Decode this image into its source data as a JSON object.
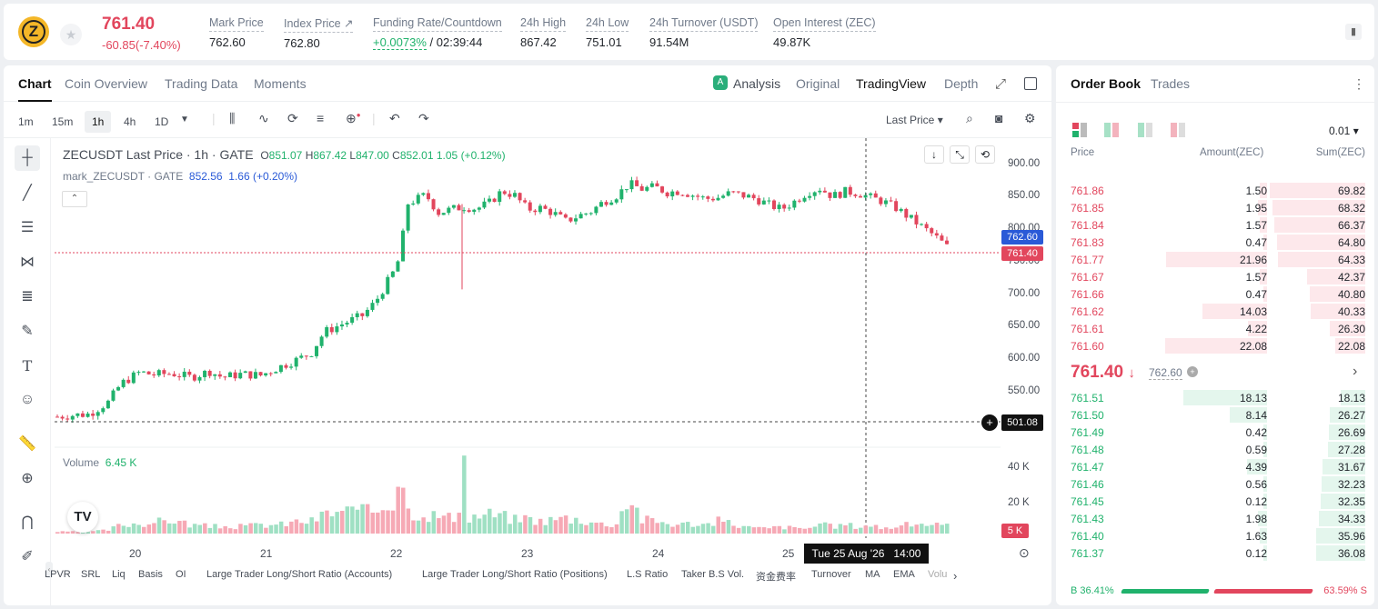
{
  "header": {
    "coin_icon": "zec-coin-icon",
    "last_price": "761.40",
    "change": "-60.85(-7.40%)",
    "stats": [
      {
        "label": "Mark Price",
        "value": "762.60"
      },
      {
        "label": "Index Price ↗",
        "value": "762.80"
      },
      {
        "label": "Funding Rate/Countdown",
        "value_green": "+0.0073%",
        "value": " / 02:39:44"
      },
      {
        "label": "24h High",
        "value": "867.42"
      },
      {
        "label": "24h Low",
        "value": "751.01"
      },
      {
        "label": "24h Turnover (USDT)",
        "value": "91.54M"
      },
      {
        "label": "Open Interest (ZEC)",
        "value": "49.87K"
      }
    ]
  },
  "chart_tabs": [
    "Chart",
    "Coin Overview",
    "Trading Data",
    "Moments"
  ],
  "view_tabs": [
    "Analysis",
    "Original",
    "TradingView",
    "Depth"
  ],
  "timeframes": [
    "1m",
    "15m",
    "1h",
    "4h",
    "1D"
  ],
  "price_type": "Last Price",
  "legend": {
    "title": "ZECUSDT Last Price · 1h · GATE",
    "o": "O",
    "o_v": "851.07",
    "h": "H",
    "h_v": "867.42",
    "l": "L",
    "l_v": "847.00",
    "c": "C",
    "c_v": "852.01",
    "chg": "1.05 (+0.12%)",
    "mark": "mark_ZECUSDT · GATE",
    "mark_v": "852.56",
    "mark_chg": "1.66 (+0.20%)"
  },
  "volume_label": "Volume",
  "volume_value": "6.45 K",
  "tags": {
    "mark": "762.60",
    "last": "761.40",
    "cross": "501.08",
    "vol": "5 K",
    "time": "Tue 25 Aug '26   14:00"
  },
  "indicators": [
    "LPVR",
    "SRL",
    "Liq",
    "Basis",
    "OI",
    "Large Trader Long/Short Ratio (Accounts)",
    "Large Trader Long/Short Ratio (Positions)",
    "L.S Ratio",
    "Taker B.S Vol.",
    "资金费率",
    "Turnover",
    "MA",
    "EMA",
    "Volu"
  ],
  "chart_data": {
    "type": "candlestick",
    "title": "ZECUSDT Last Price · 1h · GATE",
    "y_ticks": [
      "900.00",
      "850.00",
      "800.00",
      "750.00",
      "700.00",
      "650.00",
      "600.00",
      "550.00"
    ],
    "vol_ticks": [
      "40 K",
      "20 K"
    ],
    "x_ticks": [
      "20",
      "21",
      "22",
      "23",
      "24",
      "25"
    ],
    "close_path": [
      [
        0,
        506
      ],
      [
        8,
        508
      ],
      [
        20,
        510
      ],
      [
        32,
        528
      ],
      [
        40,
        556
      ],
      [
        52,
        574
      ],
      [
        60,
        570
      ],
      [
        72,
        572
      ],
      [
        84,
        566
      ],
      [
        96,
        575
      ],
      [
        104,
        566
      ],
      [
        116,
        571
      ],
      [
        128,
        569
      ],
      [
        140,
        582
      ],
      [
        152,
        594
      ],
      [
        160,
        604
      ],
      [
        168,
        635
      ],
      [
        180,
        648
      ],
      [
        192,
        660
      ],
      [
        200,
        680
      ],
      [
        212,
        728
      ],
      [
        216,
        752
      ],
      [
        220,
        830
      ],
      [
        232,
        844
      ],
      [
        240,
        817
      ],
      [
        248,
        822
      ],
      [
        256,
        826
      ],
      [
        264,
        823
      ],
      [
        272,
        832
      ],
      [
        280,
        850
      ],
      [
        288,
        843
      ],
      [
        296,
        822
      ],
      [
        304,
        824
      ],
      [
        312,
        817
      ],
      [
        320,
        804
      ],
      [
        328,
        812
      ],
      [
        336,
        819
      ],
      [
        344,
        834
      ],
      [
        352,
        843
      ],
      [
        360,
        861
      ],
      [
        368,
        853
      ],
      [
        376,
        856
      ],
      [
        384,
        848
      ],
      [
        392,
        850
      ],
      [
        400,
        844
      ],
      [
        408,
        838
      ],
      [
        416,
        840
      ],
      [
        424,
        847
      ],
      [
        432,
        843
      ],
      [
        440,
        838
      ],
      [
        448,
        829
      ],
      [
        456,
        822
      ],
      [
        464,
        834
      ],
      [
        472,
        848
      ],
      [
        480,
        854
      ],
      [
        488,
        842
      ],
      [
        496,
        849
      ],
      [
        504,
        847
      ],
      [
        512,
        840
      ],
      [
        520,
        834
      ],
      [
        528,
        824
      ],
      [
        536,
        810
      ],
      [
        544,
        796
      ],
      [
        552,
        782
      ],
      [
        560,
        765
      ]
    ],
    "volumes": [
      [
        0,
        1
      ],
      [
        8,
        1
      ],
      [
        20,
        1
      ],
      [
        32,
        2
      ],
      [
        40,
        5
      ],
      [
        52,
        6
      ],
      [
        60,
        6
      ],
      [
        72,
        8
      ],
      [
        84,
        5
      ],
      [
        96,
        4
      ],
      [
        104,
        4
      ],
      [
        116,
        4
      ],
      [
        128,
        5
      ],
      [
        140,
        5
      ],
      [
        152,
        7
      ],
      [
        160,
        7
      ],
      [
        168,
        11
      ],
      [
        180,
        13
      ],
      [
        192,
        12
      ],
      [
        200,
        13
      ],
      [
        212,
        20
      ],
      [
        216,
        44
      ],
      [
        220,
        13
      ],
      [
        232,
        11
      ],
      [
        240,
        10
      ],
      [
        248,
        9
      ],
      [
        256,
        8
      ],
      [
        264,
        10
      ],
      [
        272,
        11
      ],
      [
        280,
        10
      ],
      [
        288,
        8
      ],
      [
        296,
        9
      ],
      [
        304,
        7
      ],
      [
        312,
        8
      ],
      [
        320,
        9
      ],
      [
        328,
        8
      ],
      [
        336,
        7
      ],
      [
        344,
        5
      ],
      [
        352,
        6
      ],
      [
        360,
        22
      ],
      [
        368,
        8
      ],
      [
        376,
        7
      ],
      [
        384,
        6
      ],
      [
        392,
        5
      ],
      [
        400,
        6
      ],
      [
        408,
        5
      ],
      [
        416,
        7
      ],
      [
        424,
        6
      ],
      [
        432,
        4
      ],
      [
        440,
        3
      ],
      [
        448,
        3
      ],
      [
        456,
        4
      ],
      [
        464,
        3
      ],
      [
        472,
        3
      ],
      [
        480,
        5
      ],
      [
        488,
        4
      ],
      [
        496,
        5
      ],
      [
        504,
        4
      ],
      [
        512,
        5
      ],
      [
        520,
        3
      ],
      [
        528,
        4
      ],
      [
        536,
        5
      ],
      [
        544,
        6
      ],
      [
        552,
        5
      ],
      [
        560,
        4
      ]
    ],
    "ylim": [
      501.08,
      900
    ]
  },
  "orderbook": {
    "tabs": [
      "Order Book",
      "Trades"
    ],
    "step": "0.01",
    "cols": [
      "Price",
      "Amount(ZEC)",
      "Sum(ZEC)"
    ],
    "asks": [
      [
        "761.86",
        "1.50",
        "69.82"
      ],
      [
        "761.85",
        "1.95",
        "68.32"
      ],
      [
        "761.84",
        "1.57",
        "66.37"
      ],
      [
        "761.83",
        "0.47",
        "64.80"
      ],
      [
        "761.77",
        "21.96",
        "64.33"
      ],
      [
        "761.67",
        "1.57",
        "42.37"
      ],
      [
        "761.66",
        "0.47",
        "40.80"
      ],
      [
        "761.62",
        "14.03",
        "40.33"
      ],
      [
        "761.61",
        "4.22",
        "26.30"
      ],
      [
        "761.60",
        "22.08",
        "22.08"
      ]
    ],
    "mid": {
      "price": "761.40",
      "arrow": "↓",
      "mark": "762.60"
    },
    "bids": [
      [
        "761.51",
        "18.13",
        "18.13"
      ],
      [
        "761.50",
        "8.14",
        "26.27"
      ],
      [
        "761.49",
        "0.42",
        "26.69"
      ],
      [
        "761.48",
        "0.59",
        "27.28"
      ],
      [
        "761.47",
        "4.39",
        "31.67"
      ],
      [
        "761.46",
        "0.56",
        "32.23"
      ],
      [
        "761.45",
        "0.12",
        "32.35"
      ],
      [
        "761.43",
        "1.98",
        "34.33"
      ],
      [
        "761.40",
        "1.63",
        "35.96"
      ],
      [
        "761.37",
        "0.12",
        "36.08"
      ]
    ],
    "buy_pct": "36.41%",
    "sell_pct": "63.59%",
    "buy_label": "B",
    "sell_label": "S",
    "buy_ratio": 0.3641
  }
}
